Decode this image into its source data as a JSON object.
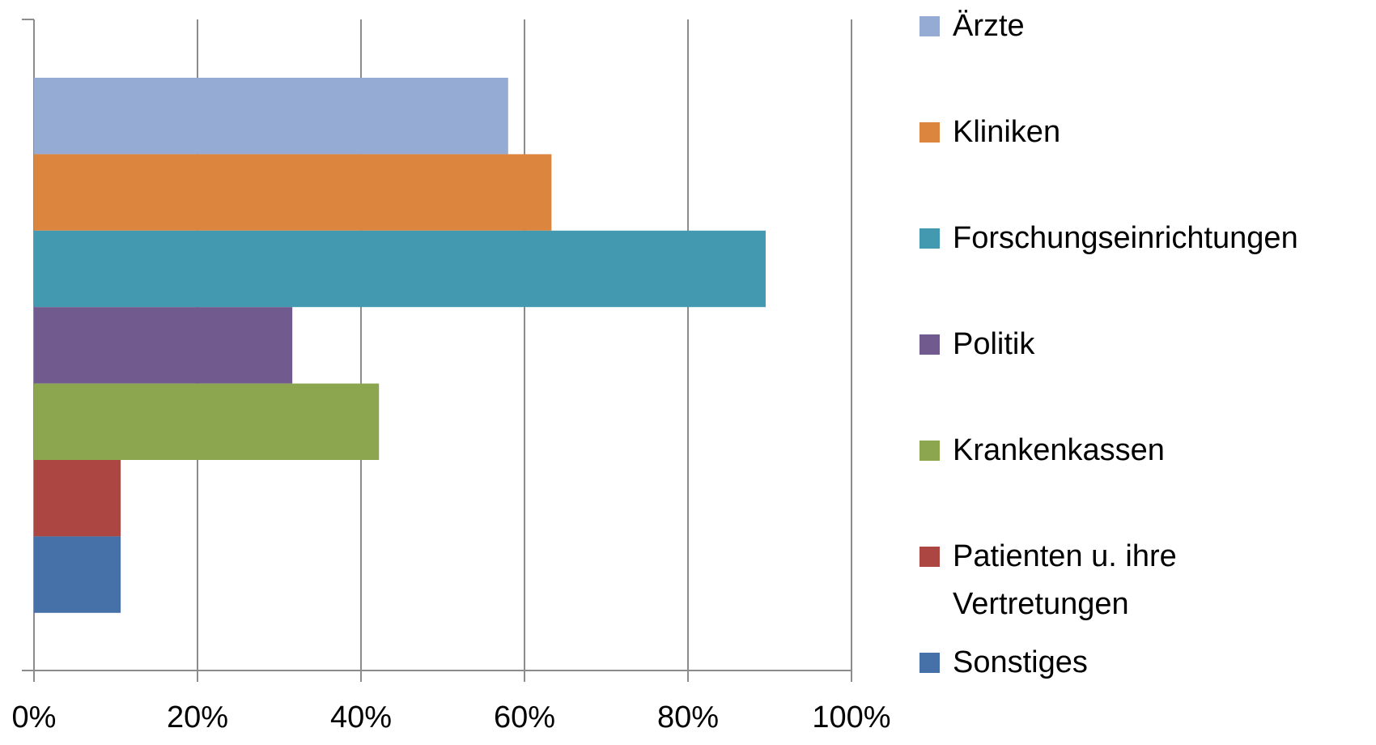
{
  "chart_data": {
    "type": "bar",
    "orientation": "horizontal",
    "categories": [
      null
    ],
    "series": [
      {
        "name": "Ärzte",
        "color": "#95abd3",
        "values": [
          58
        ]
      },
      {
        "name": "Kliniken",
        "color": "#dc853f",
        "values": [
          63.3
        ]
      },
      {
        "name": "Forschungseinrichtungen",
        "color": "#4399b0",
        "values": [
          89.5
        ]
      },
      {
        "name": "Politik",
        "color": "#705a8e",
        "values": [
          31.6
        ]
      },
      {
        "name": "Krankenkassen",
        "color": "#8ba64f",
        "values": [
          42.2
        ]
      },
      {
        "name": "Patienten u. ihre Vertretungen",
        "color": "#ab4643",
        "values": [
          10.6
        ]
      },
      {
        "name": "Sonstiges",
        "color": "#4571a8",
        "values": [
          10.6
        ]
      }
    ],
    "xlim": [
      0,
      100
    ],
    "xticks": [
      {
        "value": 0,
        "label": "0%"
      },
      {
        "value": 20,
        "label": "20%"
      },
      {
        "value": 40,
        "label": "40%"
      },
      {
        "value": 60,
        "label": "60%"
      },
      {
        "value": 80,
        "label": "80%"
      },
      {
        "value": 100,
        "label": "100%"
      }
    ],
    "grid": true,
    "legend": "right"
  }
}
